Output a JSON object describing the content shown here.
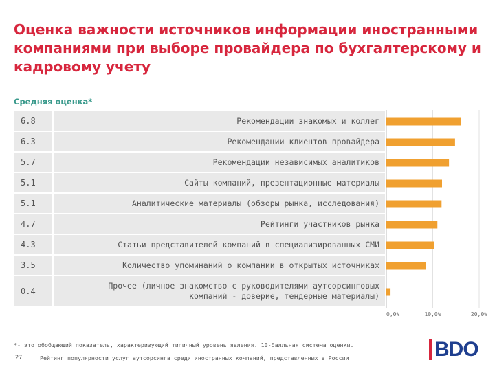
{
  "page": {
    "title": "Оценка важности источников информации иностранными\nкомпаниями при выборе провайдера по бухгалтерскому и\nкадровому учету",
    "footnote": "*- это обобщающий показатель, характеризующий типичный уровень явления. 10-балльная система оценки.",
    "page_number": "27",
    "footer_text": "Рейтинг популярности услуг аутсорсинга среди иностранных компаний, представленных в России",
    "logo_text": "BDO",
    "accent_color": "#d7263d",
    "bar_color": "#f0a030",
    "logo_color": "#1f3f8f"
  },
  "chart_data": {
    "type": "bar",
    "orientation": "horizontal",
    "title": "Оценка важности источников информации иностранными компаниями при выборе провайдера по бухгалтерскому и кадровому учету",
    "subtitle": "Средняя оценка*",
    "categories": [
      "Рекомендации знакомых и коллег",
      "Рекомендации клиентов провайдера",
      "Рекомендации независимых аналитиков",
      "Сайты компаний, презентационные материалы",
      "Аналитические материалы (обзоры рынка, исследования)",
      "Рейтинги участников рынка",
      "Статьи представителей компаний в специализированных СМИ",
      "Количество упоминаний о компании в открытых источниках",
      "Прочее (личное знакомство с руководителями аутсорсинговых\nкомпаний - доверие, тендерные материалы)"
    ],
    "score_labels": [
      "6.8",
      "6.3",
      "5.7",
      "5.1",
      "5.1",
      "4.7",
      "4.3",
      "3.5",
      "0.4"
    ],
    "values": [
      16.0,
      14.8,
      13.5,
      12.0,
      11.9,
      11.0,
      10.3,
      8.5,
      0.9
    ],
    "xlim": [
      0,
      20
    ],
    "x_ticks": [
      "0,0%",
      "10,0%",
      "20,0%"
    ],
    "grid": true
  }
}
